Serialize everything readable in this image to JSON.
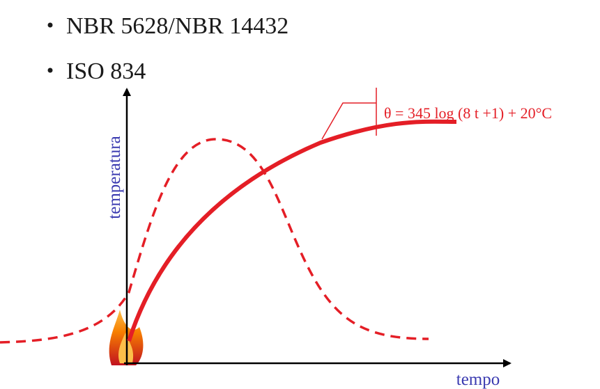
{
  "bullets": [
    "NBR 5628/NBR 14432",
    "ISO 834"
  ],
  "diagram": {
    "y_axis_label": "temperatura",
    "x_axis_label": "tempo",
    "equation": "θ = 345 log (8 t +1) + 20°C"
  }
}
